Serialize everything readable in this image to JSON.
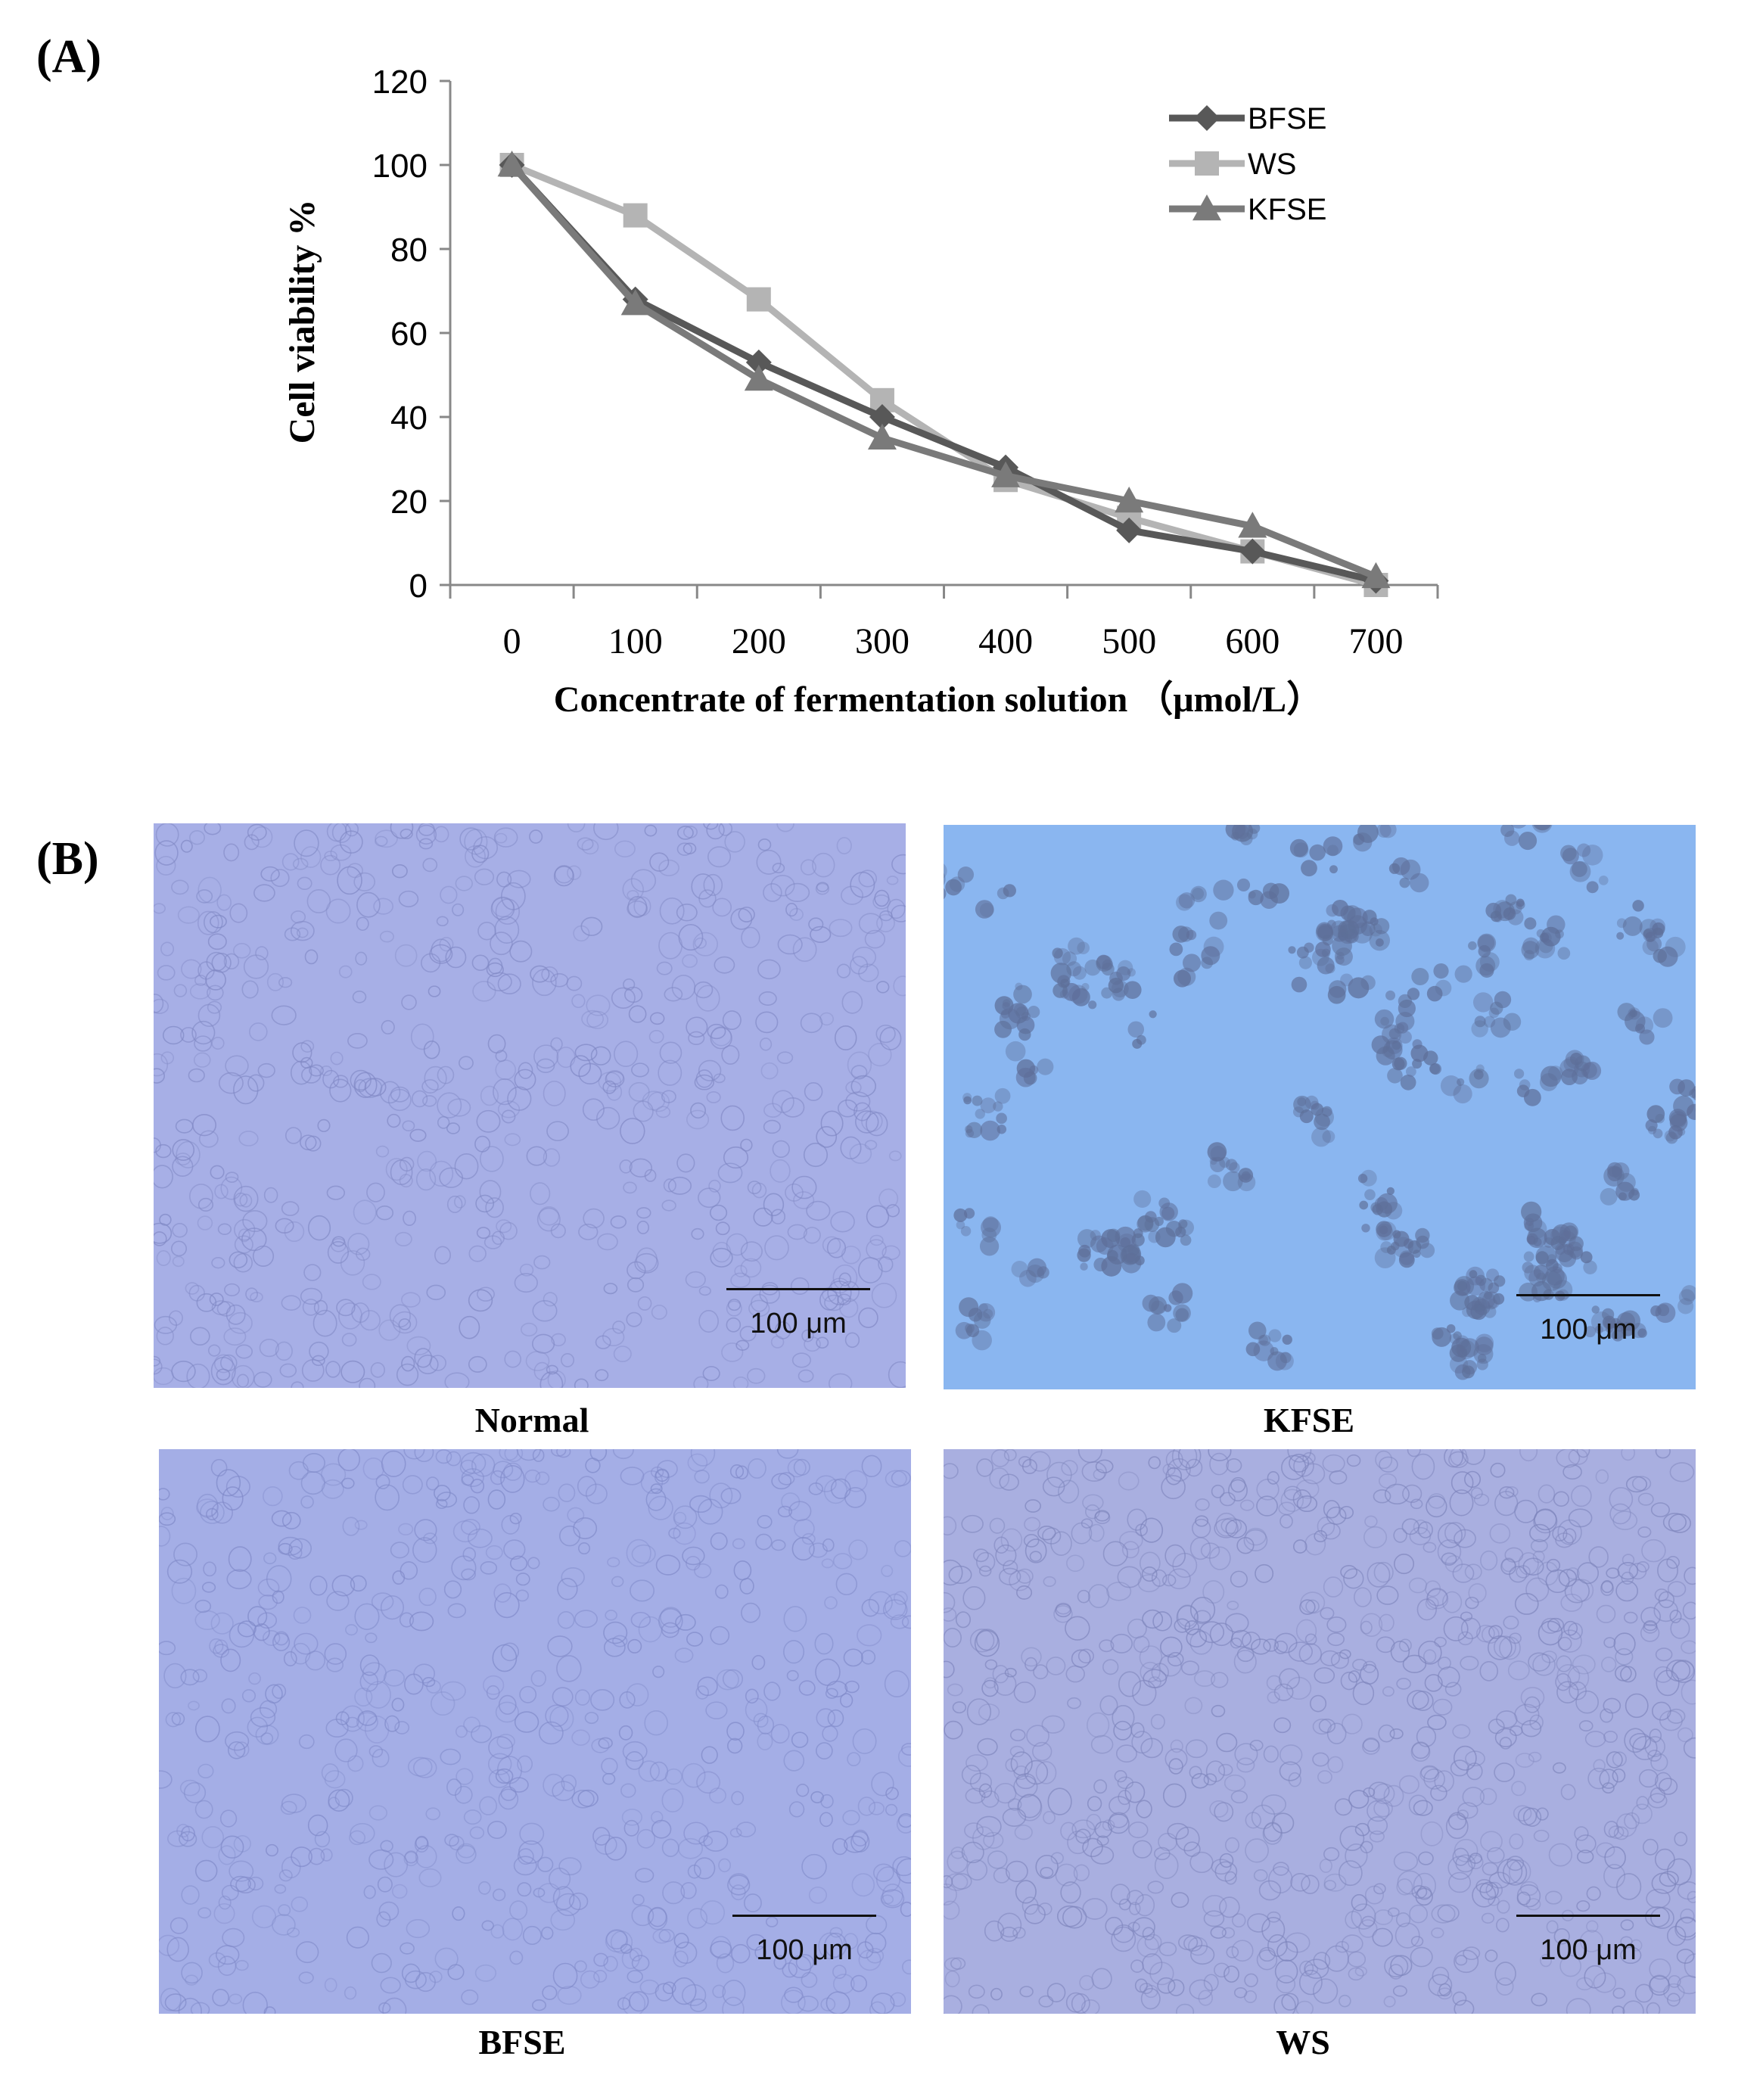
{
  "panel_a_label": "(A)",
  "panel_b_label": "(B)",
  "chart_data": {
    "type": "line",
    "title": "",
    "xlabel": "Concentrate of fermentation solution （μmol/L）",
    "ylabel": "Cell viability %",
    "x": [
      0,
      100,
      200,
      300,
      400,
      500,
      600,
      700
    ],
    "x_tick_labels": [
      "0",
      "100",
      "200",
      "300",
      "400",
      "500",
      "600",
      "700"
    ],
    "y_ticks": [
      0,
      20,
      40,
      60,
      80,
      100,
      120
    ],
    "y_tick_labels": [
      "0",
      "20",
      "40",
      "60",
      "80",
      "100",
      "120"
    ],
    "xlim": [
      -50,
      750
    ],
    "ylim": [
      0,
      120
    ],
    "grid": false,
    "legend_position": "top-right",
    "series": [
      {
        "name": "BFSE",
        "values": [
          100,
          68,
          53,
          40,
          28,
          13,
          8,
          1
        ],
        "color": "#585858",
        "marker": "diamond"
      },
      {
        "name": "WS",
        "values": [
          100,
          88,
          68,
          44,
          25,
          16,
          8,
          0
        ],
        "color": "#b4b4b4",
        "marker": "square"
      },
      {
        "name": "KFSE",
        "values": [
          100,
          67,
          49,
          35,
          26,
          20,
          14,
          2
        ],
        "color": "#7a7a7a",
        "marker": "triangle"
      }
    ]
  },
  "micrographs": [
    {
      "caption": "Normal",
      "scale_label": "100 μm",
      "tint": "#a7afe6",
      "cell_color": "#8088c4"
    },
    {
      "caption": "KFSE",
      "scale_label": "100 μm",
      "tint": "#8ab6f0",
      "cell_color": "#5e6f99"
    },
    {
      "caption": "BFSE",
      "scale_label": "100 μm",
      "tint": "#a4aee6",
      "cell_color": "#7f89c8"
    },
    {
      "caption": "WS",
      "scale_label": "100 μm",
      "tint": "#a9afe0",
      "cell_color": "#7d84bb"
    }
  ]
}
